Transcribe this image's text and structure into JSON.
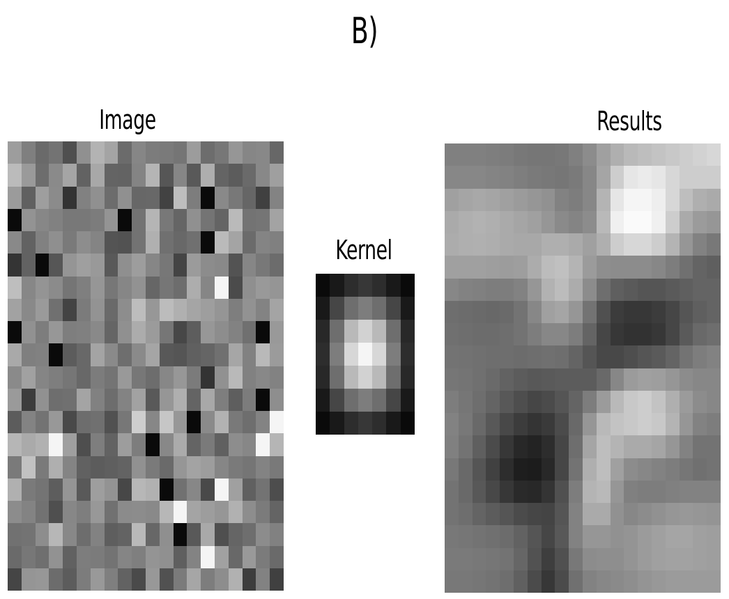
{
  "panel_label": "B)",
  "image": {
    "title": "Image",
    "rows": 20,
    "cols": 20
  },
  "kernel": {
    "title": "Kernel",
    "values": [
      [
        10,
        25,
        45,
        55,
        45,
        25,
        10
      ],
      [
        25,
        70,
        110,
        125,
        110,
        70,
        25
      ],
      [
        40,
        110,
        185,
        210,
        185,
        110,
        40
      ],
      [
        45,
        125,
        215,
        245,
        215,
        125,
        45
      ],
      [
        40,
        110,
        185,
        210,
        185,
        110,
        40
      ],
      [
        25,
        70,
        110,
        125,
        110,
        70,
        25
      ],
      [
        10,
        25,
        45,
        55,
        45,
        25,
        10
      ]
    ]
  },
  "results": {
    "title": "Results",
    "values": [
      [
        128,
        128,
        128,
        126,
        124,
        120,
        118,
        118,
        120,
        128,
        140,
        160,
        175,
        185,
        190,
        195,
        200,
        205,
        210,
        215
      ],
      [
        135,
        135,
        135,
        132,
        130,
        126,
        122,
        120,
        118,
        122,
        135,
        165,
        205,
        230,
        235,
        230,
        215,
        205,
        205,
        205
      ],
      [
        160,
        165,
        168,
        165,
        160,
        155,
        150,
        145,
        130,
        125,
        135,
        180,
        230,
        245,
        245,
        238,
        215,
        190,
        175,
        170
      ],
      [
        170,
        175,
        178,
        175,
        170,
        165,
        160,
        150,
        138,
        132,
        140,
        185,
        240,
        250,
        250,
        240,
        205,
        170,
        155,
        150
      ],
      [
        172,
        175,
        176,
        174,
        170,
        168,
        168,
        175,
        175,
        170,
        160,
        175,
        205,
        215,
        215,
        205,
        180,
        150,
        130,
        120
      ],
      [
        160,
        160,
        160,
        158,
        156,
        158,
        172,
        188,
        192,
        180,
        155,
        142,
        140,
        140,
        140,
        135,
        125,
        112,
        100,
        95
      ],
      [
        135,
        130,
        128,
        125,
        125,
        130,
        150,
        178,
        188,
        172,
        140,
        110,
        95,
        90,
        85,
        85,
        90,
        95,
        100,
        100
      ],
      [
        110,
        108,
        106,
        104,
        106,
        115,
        135,
        160,
        165,
        150,
        115,
        80,
        60,
        55,
        55,
        60,
        70,
        85,
        95,
        100
      ],
      [
        112,
        110,
        108,
        108,
        110,
        115,
        125,
        135,
        135,
        125,
        100,
        70,
        55,
        50,
        50,
        55,
        70,
        90,
        105,
        110
      ],
      [
        115,
        114,
        112,
        110,
        110,
        108,
        110,
        112,
        110,
        100,
        85,
        72,
        72,
        78,
        85,
        90,
        100,
        115,
        125,
        130
      ],
      [
        118,
        116,
        112,
        106,
        98,
        92,
        88,
        90,
        92,
        92,
        92,
        105,
        135,
        155,
        160,
        158,
        150,
        140,
        135,
        135
      ],
      [
        125,
        118,
        110,
        100,
        88,
        78,
        70,
        75,
        85,
        100,
        125,
        155,
        185,
        200,
        205,
        195,
        175,
        155,
        140,
        135
      ],
      [
        130,
        120,
        105,
        88,
        72,
        60,
        52,
        58,
        75,
        105,
        150,
        185,
        195,
        200,
        205,
        200,
        180,
        150,
        130,
        125
      ],
      [
        128,
        115,
        95,
        75,
        55,
        40,
        35,
        45,
        70,
        110,
        165,
        190,
        180,
        170,
        170,
        165,
        150,
        130,
        115,
        115
      ],
      [
        120,
        105,
        85,
        65,
        45,
        30,
        28,
        40,
        70,
        115,
        175,
        190,
        160,
        140,
        135,
        130,
        125,
        118,
        112,
        115
      ],
      [
        115,
        105,
        88,
        72,
        55,
        42,
        40,
        52,
        80,
        125,
        180,
        185,
        150,
        128,
        125,
        125,
        128,
        130,
        130,
        130
      ],
      [
        115,
        110,
        100,
        92,
        85,
        75,
        70,
        68,
        85,
        130,
        170,
        170,
        145,
        135,
        140,
        145,
        150,
        152,
        150,
        148
      ],
      [
        120,
        118,
        115,
        112,
        108,
        98,
        85,
        70,
        88,
        130,
        150,
        150,
        145,
        148,
        155,
        160,
        165,
        165,
        160,
        158
      ],
      [
        122,
        122,
        120,
        118,
        115,
        102,
        82,
        62,
        80,
        120,
        140,
        142,
        142,
        148,
        155,
        160,
        162,
        162,
        160,
        158
      ],
      [
        120,
        120,
        118,
        115,
        110,
        96,
        75,
        55,
        75,
        112,
        130,
        135,
        138,
        142,
        148,
        152,
        155,
        155,
        155,
        155
      ]
    ]
  }
}
